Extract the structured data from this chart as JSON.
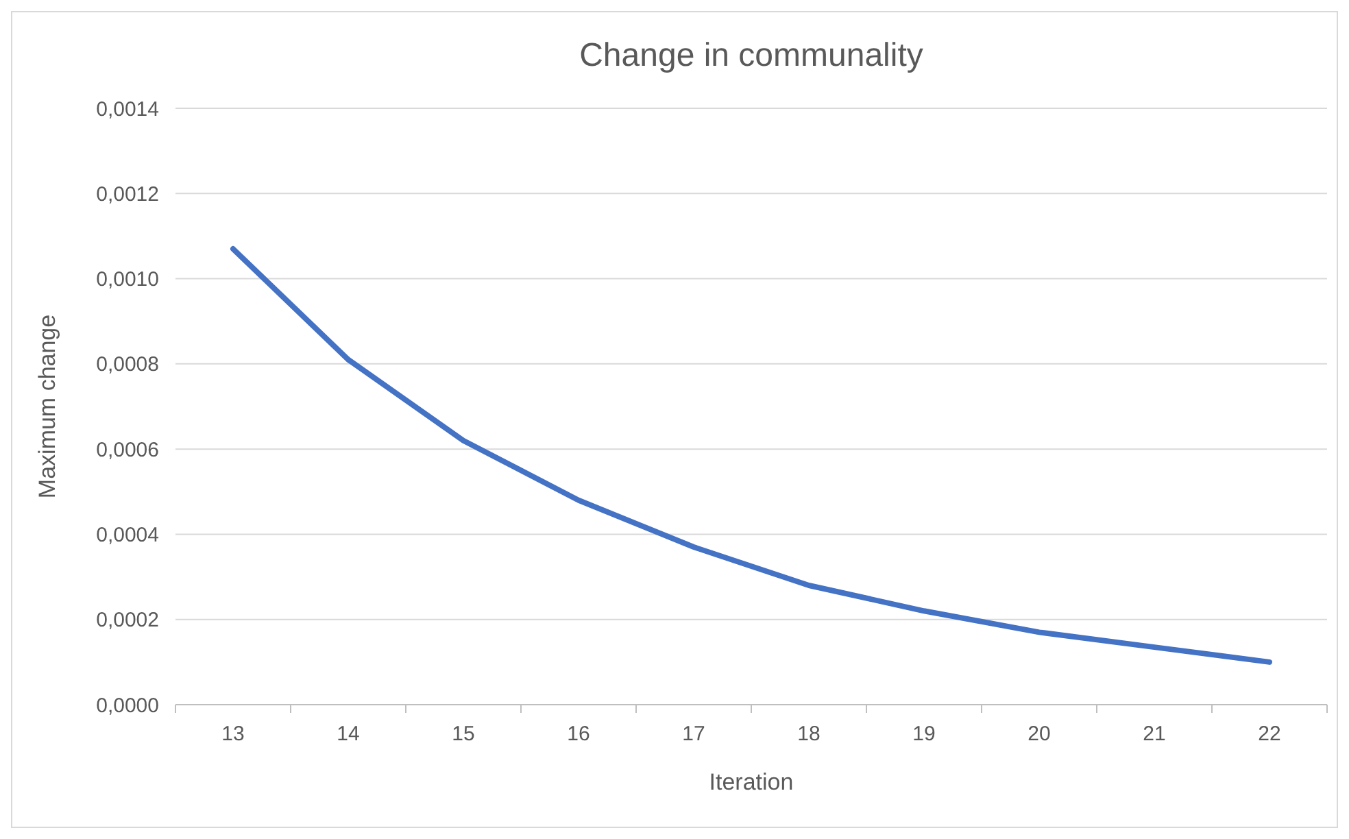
{
  "chart_data": {
    "type": "line",
    "title": "Change in communality",
    "xlabel": "Iteration",
    "ylabel": "Maximum change",
    "categories": [
      "13",
      "14",
      "15",
      "16",
      "17",
      "18",
      "19",
      "20",
      "21",
      "22"
    ],
    "series": [
      {
        "color": "#4472c4",
        "values": [
          0.00107,
          0.00081,
          0.00062,
          0.00048,
          0.00037,
          0.00028,
          0.00022,
          0.00017,
          0.000135,
          0.0001
        ]
      }
    ],
    "ylim": [
      0,
      0.0014
    ],
    "yticks": [
      {
        "value": 0,
        "label": "0,0000"
      },
      {
        "value": 0.0002,
        "label": "0,0002"
      },
      {
        "value": 0.0004,
        "label": "0,0004"
      },
      {
        "value": 0.0006,
        "label": "0,0006"
      },
      {
        "value": 0.0008,
        "label": "0,0008"
      },
      {
        "value": 0.001,
        "label": "0,0010"
      },
      {
        "value": 0.0012,
        "label": "0,0012"
      },
      {
        "value": 0.0014,
        "label": "0,0014"
      }
    ],
    "grid": "y",
    "marker": "none",
    "line_style": "solid"
  }
}
